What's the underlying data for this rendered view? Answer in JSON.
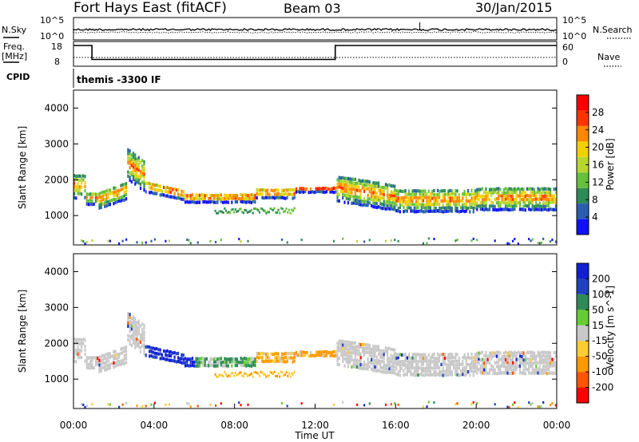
{
  "header": {
    "station": "Fort Hays East (fitACF)",
    "beam": "Beam 03",
    "date": "30/Jan/2015"
  },
  "left_labels": {
    "nsky": "N.Sky",
    "freq_line1": "Freq.",
    "freq_line2": "[MHz]",
    "cpid": "CPID"
  },
  "right_labels": {
    "nsearch": "N.Search",
    "nave": "Nave"
  },
  "cpid_text": "themis -3300 IF",
  "noise_ticks": {
    "top": "10^5",
    "bottom": "10^0"
  },
  "freq_ticks": [
    "18",
    "8"
  ],
  "nave_ticks": [
    "60",
    "0"
  ],
  "colors": {
    "power_scale": [
      "#1010ff",
      "#2a5db0",
      "#2e8b57",
      "#66c03a",
      "#b8d630",
      "#f2d000",
      "#ff8800",
      "#ff3300",
      "#ff0000"
    ],
    "velocity_scale": [
      "#1020d0",
      "#2040c0",
      "#2e8b57",
      "#66cc33",
      "#c8c8c8",
      "#ffcc33",
      "#ff9900",
      "#ff5500",
      "#ff0000"
    ],
    "ground_scatter": "#c8c8c8",
    "frame": "#000000"
  },
  "chart_data": [
    {
      "type": "line",
      "panel": "noise",
      "series": [
        {
          "name": "N.Sky",
          "style": "solid",
          "approx_value": "~10^2"
        },
        {
          "name": "N.Search",
          "style": "dotted",
          "approx_value": "~10^1.5"
        }
      ],
      "yticks": [
        "10^5",
        "10^0"
      ]
    },
    {
      "type": "line",
      "panel": "frequency",
      "series": [
        {
          "name": "Freq. [MHz]",
          "style": "solid",
          "x": [
            "00:00",
            "00:55",
            "00:55",
            "13:00",
            "13:00",
            "24:00"
          ],
          "values": [
            18,
            18,
            11,
            11,
            18,
            18
          ]
        },
        {
          "name": "Nave",
          "style": "dotted",
          "approx_value": 23
        }
      ],
      "yticks_left": [
        "18",
        "8"
      ],
      "yticks_right": [
        "60",
        "0"
      ]
    },
    {
      "type": "heatmap",
      "panel": "power",
      "ylabel": "Slant Range [km]",
      "yticks": [
        1000,
        2000,
        3000,
        4000
      ],
      "ylim": [
        180,
        4500
      ],
      "colorbar_label": "Power [dB]",
      "colorbar_ticks": [
        4,
        8,
        12,
        16,
        20,
        24,
        28
      ],
      "features": [
        {
          "time_range": [
            "00:00",
            "02:30"
          ],
          "range_km": [
            1200,
            2600
          ],
          "power_db": "8-20"
        },
        {
          "time_range": [
            "03:30",
            "13:00"
          ],
          "range_km": [
            1400,
            2000
          ],
          "power_db": "12-24"
        },
        {
          "time_range": [
            "13:00",
            "24:00"
          ],
          "range_km": [
            1200,
            2400
          ],
          "power_db": "8-20"
        }
      ]
    },
    {
      "type": "heatmap",
      "panel": "velocity",
      "ylabel": "Slant Range [km]",
      "xlabel": "Time UT",
      "yticks": [
        1000,
        2000,
        3000,
        4000
      ],
      "ylim": [
        180,
        4500
      ],
      "xticks": [
        "00:00",
        "04:00",
        "08:00",
        "12:00",
        "16:00",
        "20:00",
        "00:00"
      ],
      "colorbar_label": "Velocity [m s^-1]",
      "colorbar_ticks": [
        200,
        100,
        50,
        15,
        -15,
        -50,
        -100,
        -200
      ],
      "features": [
        {
          "time_range": [
            "00:00",
            "03:00"
          ],
          "range_km": [
            1200,
            2800
          ],
          "velocity": "mostly ground scatter"
        },
        {
          "time_range": [
            "03:30",
            "09:00"
          ],
          "range_km": [
            1400,
            2200
          ],
          "velocity": "15 to 200 (blue/green)"
        },
        {
          "time_range": [
            "09:00",
            "13:00"
          ],
          "range_km": [
            1200,
            2000
          ],
          "velocity": "-15 to -100 (orange)"
        },
        {
          "time_range": [
            "13:00",
            "24:00"
          ],
          "range_km": [
            1100,
            2400
          ],
          "velocity": "ground scatter (grey)"
        }
      ]
    }
  ]
}
